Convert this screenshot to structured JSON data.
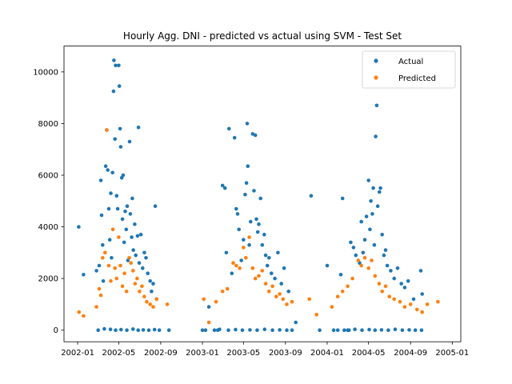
{
  "chart_data": {
    "type": "scatter",
    "title": "Hourly Agg. DNI - predicted vs actual using SVM - Test Set",
    "xlabel": "",
    "ylabel": "",
    "xlim": [
      "2001-11-22",
      "2005-01-26"
    ],
    "ylim": [
      -450,
      11000
    ],
    "x_ticks": [
      "2002-01",
      "2002-05",
      "2002-09",
      "2003-01",
      "2003-05",
      "2003-09",
      "2004-01",
      "2004-05",
      "2004-09",
      "2005-01"
    ],
    "y_ticks": [
      0,
      2000,
      4000,
      6000,
      8000,
      10000
    ],
    "legend_position": "top-right",
    "grid": false,
    "series": [
      {
        "name": "Actual",
        "color": "#1f77b4",
        "points": [
          [
            "2002-01-04",
            4000
          ],
          [
            "2002-01-18",
            2150
          ],
          [
            "2002-02-25",
            2300
          ],
          [
            "2002-03-05",
            2500
          ],
          [
            "2002-03-10",
            5800
          ],
          [
            "2002-03-12",
            4450
          ],
          [
            "2002-03-15",
            3300
          ],
          [
            "2002-03-17",
            1900
          ],
          [
            "2002-03-24",
            6350
          ],
          [
            "2002-03-27",
            7750
          ],
          [
            "2002-03-30",
            6200
          ],
          [
            "2002-04-02",
            4700
          ],
          [
            "2002-04-05",
            3500
          ],
          [
            "2002-04-08",
            5300
          ],
          [
            "2002-04-10",
            2800
          ],
          [
            "2002-04-13",
            6100
          ],
          [
            "2002-04-16",
            9250
          ],
          [
            "2002-04-17",
            10450
          ],
          [
            "2002-04-20",
            7400
          ],
          [
            "2002-04-22",
            10250
          ],
          [
            "2002-04-25",
            5200
          ],
          [
            "2002-04-28",
            4700
          ],
          [
            "2002-05-01",
            10250
          ],
          [
            "2002-05-03",
            9450
          ],
          [
            "2002-05-05",
            7800
          ],
          [
            "2002-05-07",
            7100
          ],
          [
            "2002-05-10",
            5900
          ],
          [
            "2002-05-12",
            4300
          ],
          [
            "2002-05-14",
            6000
          ],
          [
            "2002-05-17",
            3400
          ],
          [
            "2002-05-20",
            4600
          ],
          [
            "2002-05-23",
            3900
          ],
          [
            "2002-05-26",
            4800
          ],
          [
            "2002-05-28",
            2700
          ],
          [
            "2002-06-02",
            7300
          ],
          [
            "2002-06-04",
            4500
          ],
          [
            "2002-06-08",
            3600
          ],
          [
            "2002-06-10",
            5100
          ],
          [
            "2002-06-13",
            3100
          ],
          [
            "2002-06-17",
            4100
          ],
          [
            "2002-06-20",
            2900
          ],
          [
            "2002-06-25",
            3650
          ],
          [
            "2002-06-28",
            7850
          ],
          [
            "2002-06-30",
            2600
          ],
          [
            "2002-07-05",
            3700
          ],
          [
            "2002-07-10",
            2400
          ],
          [
            "2002-07-15",
            3000
          ],
          [
            "2002-07-20",
            2800
          ],
          [
            "2002-07-25",
            2200
          ],
          [
            "2002-08-01",
            1900
          ],
          [
            "2002-08-05",
            1500
          ],
          [
            "2002-08-10",
            1800
          ],
          [
            "2002-08-16",
            4800
          ],
          [
            "2002-08-20",
            1200
          ],
          [
            "2002-03-02",
            0
          ],
          [
            "2002-03-20",
            50
          ],
          [
            "2002-04-07",
            30
          ],
          [
            "2002-04-22",
            0
          ],
          [
            "2002-05-08",
            20
          ],
          [
            "2002-05-25",
            0
          ],
          [
            "2002-06-12",
            40
          ],
          [
            "2002-06-27",
            0
          ],
          [
            "2002-07-12",
            10
          ],
          [
            "2002-07-28",
            0
          ],
          [
            "2002-08-14",
            20
          ],
          [
            "2002-08-28",
            0
          ],
          [
            "2002-09-25",
            0
          ],
          [
            "2003-01-01",
            0
          ],
          [
            "2003-01-10",
            0
          ],
          [
            "2003-01-20",
            900
          ],
          [
            "2003-02-05",
            0
          ],
          [
            "2003-02-15",
            0
          ],
          [
            "2003-03-01",
            5600
          ],
          [
            "2003-03-08",
            5500
          ],
          [
            "2003-03-12",
            3000
          ],
          [
            "2003-03-20",
            7800
          ],
          [
            "2003-03-28",
            2200
          ],
          [
            "2003-04-05",
            7450
          ],
          [
            "2003-04-10",
            4700
          ],
          [
            "2003-04-14",
            4500
          ],
          [
            "2003-04-18",
            3900
          ],
          [
            "2003-04-25",
            2700
          ],
          [
            "2003-05-01",
            3500
          ],
          [
            "2003-05-06",
            5250
          ],
          [
            "2003-05-10",
            5700
          ],
          [
            "2003-05-12",
            8000
          ],
          [
            "2003-05-14",
            6350
          ],
          [
            "2003-05-18",
            3300
          ],
          [
            "2003-05-22",
            4200
          ],
          [
            "2003-05-28",
            7600
          ],
          [
            "2003-06-01",
            5400
          ],
          [
            "2003-06-05",
            7550
          ],
          [
            "2003-06-08",
            4300
          ],
          [
            "2003-06-12",
            3800
          ],
          [
            "2003-06-15",
            4100
          ],
          [
            "2003-06-20",
            5100
          ],
          [
            "2003-06-25",
            3300
          ],
          [
            "2003-07-01",
            3700
          ],
          [
            "2003-07-05",
            2900
          ],
          [
            "2003-07-10",
            2500
          ],
          [
            "2003-07-15",
            2800
          ],
          [
            "2003-07-22",
            2200
          ],
          [
            "2003-08-01",
            2000
          ],
          [
            "2003-08-10",
            3000
          ],
          [
            "2003-08-20",
            1800
          ],
          [
            "2003-08-28",
            2400
          ],
          [
            "2003-09-10",
            1500
          ],
          [
            "2003-10-01",
            300
          ],
          [
            "2003-11-15",
            5200
          ],
          [
            "2003-02-20",
            30
          ],
          [
            "2003-03-18",
            0
          ],
          [
            "2003-04-08",
            20
          ],
          [
            "2003-04-28",
            0
          ],
          [
            "2003-05-20",
            10
          ],
          [
            "2003-06-10",
            0
          ],
          [
            "2003-07-02",
            30
          ],
          [
            "2003-07-25",
            0
          ],
          [
            "2003-08-15",
            10
          ],
          [
            "2003-09-05",
            0
          ],
          [
            "2003-09-20",
            0
          ],
          [
            "2003-12-10",
            0
          ],
          [
            "2004-01-01",
            2500
          ],
          [
            "2004-01-20",
            0
          ],
          [
            "2004-02-01",
            0
          ],
          [
            "2004-02-10",
            2150
          ],
          [
            "2004-02-15",
            5100
          ],
          [
            "2004-02-20",
            0
          ],
          [
            "2004-03-01",
            0
          ],
          [
            "2004-03-10",
            3400
          ],
          [
            "2004-03-18",
            3200
          ],
          [
            "2004-03-25",
            2900
          ],
          [
            "2004-04-05",
            2600
          ],
          [
            "2004-04-10",
            4200
          ],
          [
            "2004-04-15",
            3000
          ],
          [
            "2004-04-20",
            3500
          ],
          [
            "2004-04-25",
            4400
          ],
          [
            "2004-05-01",
            5800
          ],
          [
            "2004-05-05",
            3900
          ],
          [
            "2004-05-08",
            5000
          ],
          [
            "2004-05-12",
            4500
          ],
          [
            "2004-05-15",
            5500
          ],
          [
            "2004-05-18",
            3300
          ],
          [
            "2004-05-22",
            7500
          ],
          [
            "2004-05-25",
            8700
          ],
          [
            "2004-05-28",
            4800
          ],
          [
            "2004-06-02",
            5350
          ],
          [
            "2004-06-05",
            5500
          ],
          [
            "2004-06-10",
            3700
          ],
          [
            "2004-06-15",
            2900
          ],
          [
            "2004-06-20",
            3100
          ],
          [
            "2004-06-25",
            2500
          ],
          [
            "2004-07-05",
            2300
          ],
          [
            "2004-07-15",
            2000
          ],
          [
            "2004-07-25",
            2400
          ],
          [
            "2004-08-05",
            1800
          ],
          [
            "2004-08-15",
            1650
          ],
          [
            "2004-08-25",
            1900
          ],
          [
            "2004-09-10",
            1200
          ],
          [
            "2004-10-01",
            2300
          ],
          [
            "2004-10-05",
            1400
          ],
          [
            "2004-03-05",
            0
          ],
          [
            "2004-03-22",
            30
          ],
          [
            "2004-04-12",
            0
          ],
          [
            "2004-05-03",
            20
          ],
          [
            "2004-05-20",
            0
          ],
          [
            "2004-06-08",
            10
          ],
          [
            "2004-06-28",
            0
          ],
          [
            "2004-07-18",
            30
          ],
          [
            "2004-08-08",
            0
          ],
          [
            "2004-08-28",
            10
          ],
          [
            "2004-09-15",
            0
          ],
          [
            "2004-10-03",
            0
          ]
        ]
      },
      {
        "name": "Predicted",
        "color": "#ff7f0e",
        "points": [
          [
            "2002-01-05",
            700
          ],
          [
            "2002-01-18",
            550
          ],
          [
            "2002-02-25",
            900
          ],
          [
            "2002-03-05",
            1600
          ],
          [
            "2002-03-10",
            1350
          ],
          [
            "2002-03-15",
            2800
          ],
          [
            "2002-03-22",
            3000
          ],
          [
            "2002-03-27",
            7750
          ],
          [
            "2002-04-02",
            2500
          ],
          [
            "2002-04-08",
            1900
          ],
          [
            "2002-04-14",
            3900
          ],
          [
            "2002-04-20",
            2400
          ],
          [
            "2002-04-25",
            2000
          ],
          [
            "2002-05-01",
            3600
          ],
          [
            "2002-05-06",
            2500
          ],
          [
            "2002-05-12",
            1700
          ],
          [
            "2002-05-18",
            2200
          ],
          [
            "2002-05-24",
            1500
          ],
          [
            "2002-06-01",
            2800
          ],
          [
            "2002-06-06",
            2600
          ],
          [
            "2002-06-12",
            2300
          ],
          [
            "2002-06-18",
            1800
          ],
          [
            "2002-06-24",
            2000
          ],
          [
            "2002-07-01",
            1500
          ],
          [
            "2002-07-08",
            1700
          ],
          [
            "2002-07-15",
            1300
          ],
          [
            "2002-07-22",
            1100
          ],
          [
            "2002-08-01",
            1000
          ],
          [
            "2002-08-10",
            900
          ],
          [
            "2002-08-20",
            1200
          ],
          [
            "2002-09-20",
            1000
          ],
          [
            "2003-01-05",
            1200
          ],
          [
            "2003-01-20",
            300
          ],
          [
            "2003-02-10",
            1100
          ],
          [
            "2003-03-01",
            1500
          ],
          [
            "2003-03-15",
            1600
          ],
          [
            "2003-04-01",
            2600
          ],
          [
            "2003-04-10",
            2500
          ],
          [
            "2003-04-20",
            2400
          ],
          [
            "2003-05-01",
            3200
          ],
          [
            "2003-05-08",
            2800
          ],
          [
            "2003-05-18",
            3600
          ],
          [
            "2003-05-28",
            2400
          ],
          [
            "2003-06-05",
            2000
          ],
          [
            "2003-06-15",
            2100
          ],
          [
            "2003-06-25",
            2300
          ],
          [
            "2003-07-05",
            1800
          ],
          [
            "2003-07-15",
            1500
          ],
          [
            "2003-07-25",
            1700
          ],
          [
            "2003-08-05",
            1300
          ],
          [
            "2003-08-15",
            1400
          ],
          [
            "2003-08-25",
            1200
          ],
          [
            "2003-09-05",
            1000
          ],
          [
            "2003-09-20",
            1100
          ],
          [
            "2003-11-10",
            1200
          ],
          [
            "2003-12-01",
            600
          ],
          [
            "2004-01-15",
            900
          ],
          [
            "2004-02-01",
            1300
          ],
          [
            "2004-02-15",
            1500
          ],
          [
            "2004-03-01",
            1700
          ],
          [
            "2004-03-15",
            2000
          ],
          [
            "2004-04-01",
            2700
          ],
          [
            "2004-04-10",
            2500
          ],
          [
            "2004-04-20",
            2800
          ],
          [
            "2004-05-01",
            2400
          ],
          [
            "2004-05-10",
            2700
          ],
          [
            "2004-05-20",
            2100
          ],
          [
            "2004-06-01",
            1800
          ],
          [
            "2004-06-10",
            1500
          ],
          [
            "2004-06-20",
            1700
          ],
          [
            "2004-07-01",
            1300
          ],
          [
            "2004-07-15",
            1200
          ],
          [
            "2004-08-01",
            1100
          ],
          [
            "2004-08-15",
            900
          ],
          [
            "2004-09-01",
            1000
          ],
          [
            "2004-09-20",
            800
          ],
          [
            "2004-10-05",
            700
          ],
          [
            "2004-10-20",
            1000
          ],
          [
            "2004-11-20",
            1100
          ]
        ]
      }
    ]
  }
}
